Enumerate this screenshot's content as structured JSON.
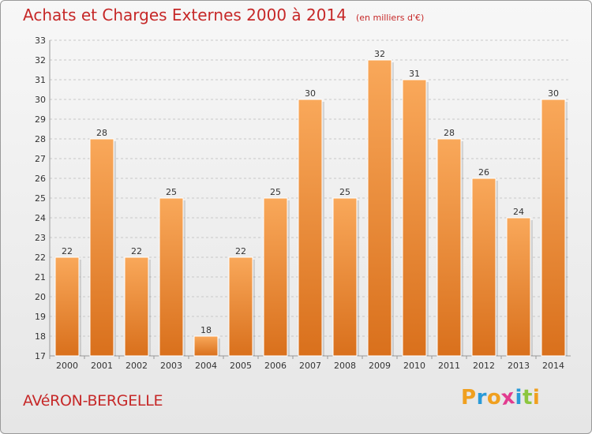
{
  "header": {
    "title": "Achats et Charges Externes 2000 à 2014",
    "subtitle": "(en milliers d'€)"
  },
  "footer": {
    "commune": "AVéRON-BERGELLE",
    "logo": {
      "letters": [
        "P",
        "r",
        "o",
        "x",
        "i",
        "t",
        "i"
      ],
      "colors": [
        "#f0a020",
        "#2a9ad8",
        "#f0a020",
        "#e23b8f",
        "#2a9ad8",
        "#8cc63f",
        "#f0a020"
      ]
    }
  },
  "chart_data": {
    "type": "bar",
    "categories": [
      "2000",
      "2001",
      "2002",
      "2003",
      "2004",
      "2005",
      "2006",
      "2007",
      "2008",
      "2009",
      "2010",
      "2011",
      "2012",
      "2013",
      "2014"
    ],
    "values": [
      22,
      28,
      22,
      25,
      18,
      22,
      25,
      30,
      25,
      32,
      31,
      28,
      26,
      24,
      30
    ],
    "data_labels": [
      "22",
      "28",
      "22",
      "25",
      "18",
      "22",
      "25",
      "30",
      "25",
      "32",
      "31",
      "28",
      "26",
      "24",
      "30"
    ],
    "yticks": [
      "17",
      "18",
      "19",
      "20",
      "21",
      "22",
      "23",
      "24",
      "25",
      "26",
      "27",
      "28",
      "29",
      "30",
      "31",
      "32",
      "33"
    ],
    "ylim": [
      17,
      33
    ],
    "grid": true,
    "colors": {
      "bar_top": "#f9a85a",
      "bar_bottom": "#d9701c",
      "grid": "#c8c8c8"
    }
  }
}
